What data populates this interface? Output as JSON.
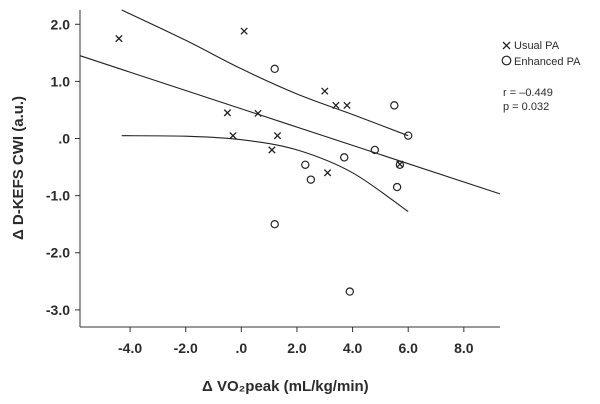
{
  "chart_data": {
    "type": "scatter",
    "xlabel": "Δ VO₂peak (mL/kg/min)",
    "ylabel": "Δ D-KEFS CWI (a.u.)",
    "xlim": [
      -5.8,
      9.3
    ],
    "ylim": [
      -3.3,
      2.25
    ],
    "x_ticks": [
      -4.0,
      -2.0,
      0.0,
      2.0,
      4.0,
      6.0,
      8.0
    ],
    "x_tick_labels": [
      "-4.0",
      "-2.0",
      ".0",
      "2.0",
      "4.0",
      "6.0",
      "8.0"
    ],
    "y_ticks": [
      2.0,
      1.0,
      0.0,
      -1.0,
      -2.0,
      -3.0
    ],
    "y_tick_labels": [
      "2.0",
      "1.0",
      ".0",
      "-1.0",
      "-2.0",
      "-3.0"
    ],
    "grid": false,
    "legend_position": "top-right",
    "series": [
      {
        "name": "Usual PA",
        "marker": "x",
        "points": [
          [
            -4.4,
            1.75
          ],
          [
            0.1,
            1.88
          ],
          [
            -0.5,
            0.45
          ],
          [
            0.6,
            0.44
          ],
          [
            -0.3,
            0.05
          ],
          [
            1.3,
            0.05
          ],
          [
            1.1,
            -0.2
          ],
          [
            3.0,
            0.83
          ],
          [
            3.4,
            0.58
          ],
          [
            3.8,
            0.58
          ],
          [
            3.1,
            -0.6
          ],
          [
            5.7,
            -0.45
          ]
        ]
      },
      {
        "name": "Enhanced PA",
        "marker": "circle",
        "points": [
          [
            1.2,
            1.22
          ],
          [
            5.5,
            0.58
          ],
          [
            6.0,
            0.05
          ],
          [
            4.8,
            -0.2
          ],
          [
            3.7,
            -0.33
          ],
          [
            2.3,
            -0.46
          ],
          [
            2.5,
            -0.72
          ],
          [
            5.7,
            -0.46
          ],
          [
            5.6,
            -0.85
          ],
          [
            1.2,
            -1.5
          ],
          [
            3.9,
            -2.68
          ]
        ]
      }
    ],
    "regression": {
      "fit": [
        [
          -5.8,
          1.45
        ],
        [
          9.3,
          -0.97
        ]
      ],
      "ci_upper": [
        [
          -4.3,
          2.25
        ],
        [
          -2.0,
          1.72
        ],
        [
          0.0,
          1.22
        ],
        [
          2.0,
          0.78
        ],
        [
          4.0,
          0.42
        ],
        [
          6.0,
          0.05
        ]
      ],
      "ci_lower": [
        [
          -4.3,
          0.05
        ],
        [
          -2.0,
          0.04
        ],
        [
          0.0,
          -0.02
        ],
        [
          2.0,
          -0.2
        ],
        [
          4.0,
          -0.6
        ],
        [
          6.0,
          -1.28
        ]
      ]
    },
    "annotations": [
      "r = –0.449",
      "p = 0.032"
    ]
  }
}
